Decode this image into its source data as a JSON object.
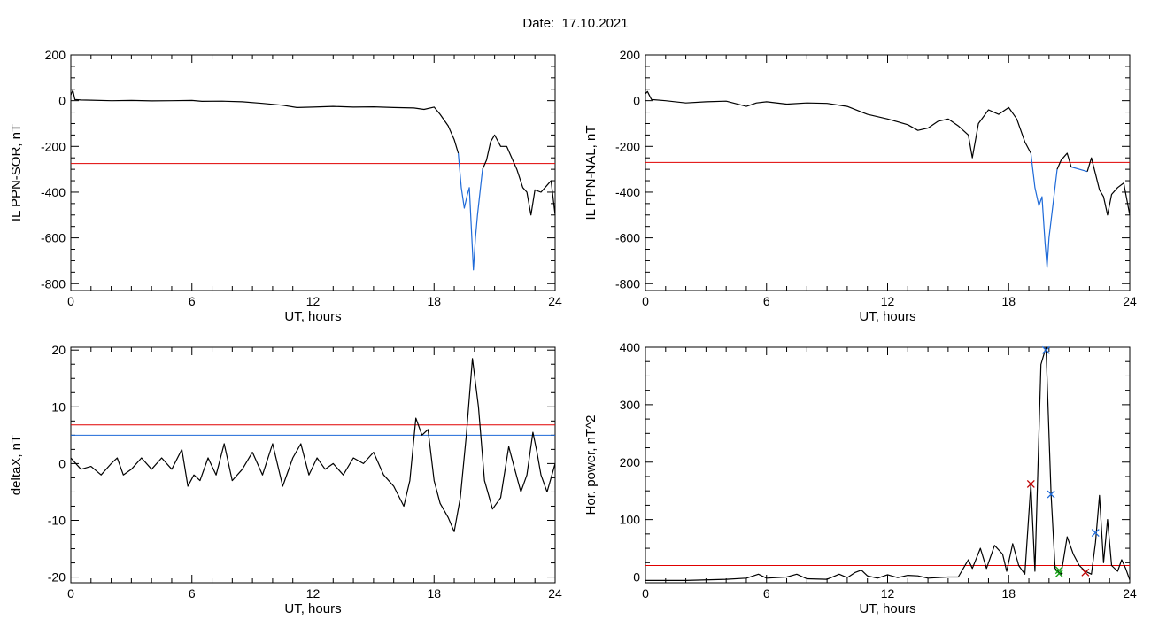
{
  "page": {
    "date_label": "Date:  17.10.2021"
  },
  "chart_data": [
    {
      "type": "line",
      "xlabel": "UT, hours",
      "ylabel": "IL PPN-SOR, nT",
      "xlim": [
        0,
        24
      ],
      "ylim": [
        -830,
        200
      ],
      "xticks": [
        0,
        6,
        12,
        18,
        24
      ],
      "yticks": [
        200,
        0,
        -200,
        -400,
        -600,
        -800
      ],
      "threshold_lines": [
        {
          "y": -275,
          "color": "#e00000"
        }
      ],
      "series": [
        {
          "color": "#000000",
          "points": [
            [
              0,
              25
            ],
            [
              0.1,
              45
            ],
            [
              0.2,
              5
            ],
            [
              0.5,
              3
            ],
            [
              1,
              2
            ],
            [
              2,
              0
            ],
            [
              3,
              1
            ],
            [
              4,
              -1
            ],
            [
              5,
              0
            ],
            [
              6,
              1
            ],
            [
              6.5,
              -3
            ],
            [
              7.5,
              -2
            ],
            [
              8.5,
              -5
            ],
            [
              9.5,
              -12
            ],
            [
              10.5,
              -20
            ],
            [
              11.2,
              -30
            ],
            [
              12,
              -28
            ],
            [
              13,
              -25
            ],
            [
              14,
              -28
            ],
            [
              15,
              -27
            ],
            [
              16,
              -30
            ],
            [
              17,
              -32
            ],
            [
              17.5,
              -38
            ],
            [
              18,
              -28
            ],
            [
              18.3,
              -60
            ],
            [
              18.7,
              -110
            ],
            [
              19.0,
              -170
            ],
            [
              19.2,
              -230
            ]
          ]
        },
        {
          "color": "#1e6ad8",
          "points": [
            [
              19.2,
              -230
            ],
            [
              19.35,
              -380
            ],
            [
              19.5,
              -470
            ],
            [
              19.65,
              -410
            ],
            [
              19.75,
              -380
            ],
            [
              19.85,
              -560
            ],
            [
              19.95,
              -740
            ],
            [
              20.05,
              -600
            ],
            [
              20.15,
              -500
            ],
            [
              20.3,
              -380
            ],
            [
              20.4,
              -300
            ]
          ]
        },
        {
          "color": "#000000",
          "points": [
            [
              20.4,
              -300
            ],
            [
              20.6,
              -260
            ],
            [
              20.8,
              -180
            ],
            [
              21.0,
              -150
            ],
            [
              21.3,
              -200
            ],
            [
              21.6,
              -200
            ],
            [
              21.9,
              -260
            ],
            [
              22.1,
              -300
            ],
            [
              22.4,
              -380
            ],
            [
              22.6,
              -400
            ],
            [
              22.8,
              -500
            ],
            [
              23.0,
              -390
            ],
            [
              23.3,
              -400
            ],
            [
              23.6,
              -370
            ],
            [
              23.8,
              -350
            ],
            [
              24,
              -500
            ]
          ]
        }
      ]
    },
    {
      "type": "line",
      "xlabel": "UT, hours",
      "ylabel": "IL PPN-NAL, nT",
      "xlim": [
        0,
        24
      ],
      "ylim": [
        -830,
        200
      ],
      "xticks": [
        0,
        6,
        12,
        18,
        24
      ],
      "yticks": [
        200,
        0,
        -200,
        -400,
        -600,
        -800
      ],
      "threshold_lines": [
        {
          "y": -270,
          "color": "#e00000"
        }
      ],
      "series": [
        {
          "color": "#000000",
          "points": [
            [
              0,
              30
            ],
            [
              0.1,
              40
            ],
            [
              0.3,
              5
            ],
            [
              1,
              0
            ],
            [
              2,
              -10
            ],
            [
              3,
              -5
            ],
            [
              4,
              -2
            ],
            [
              5,
              -25
            ],
            [
              5.5,
              -10
            ],
            [
              6,
              -5
            ],
            [
              7,
              -15
            ],
            [
              8,
              -10
            ],
            [
              9,
              -12
            ],
            [
              10,
              -25
            ],
            [
              11,
              -60
            ],
            [
              12,
              -80
            ],
            [
              13,
              -105
            ],
            [
              13.5,
              -130
            ],
            [
              14,
              -120
            ],
            [
              14.5,
              -90
            ],
            [
              15,
              -80
            ],
            [
              15.5,
              -110
            ],
            [
              16,
              -150
            ],
            [
              16.2,
              -250
            ],
            [
              16.5,
              -100
            ],
            [
              17,
              -40
            ],
            [
              17.5,
              -60
            ],
            [
              18,
              -30
            ],
            [
              18.4,
              -80
            ],
            [
              18.8,
              -180
            ],
            [
              19.1,
              -230
            ]
          ]
        },
        {
          "color": "#1e6ad8",
          "points": [
            [
              19.1,
              -230
            ],
            [
              19.3,
              -380
            ],
            [
              19.5,
              -460
            ],
            [
              19.65,
              -420
            ],
            [
              19.8,
              -620
            ],
            [
              19.9,
              -730
            ],
            [
              20.0,
              -600
            ],
            [
              20.2,
              -450
            ],
            [
              20.4,
              -300
            ]
          ]
        },
        {
          "color": "#000000",
          "points": [
            [
              20.4,
              -300
            ],
            [
              20.6,
              -260
            ],
            [
              20.9,
              -230
            ],
            [
              21.1,
              -290
            ]
          ]
        },
        {
          "color": "#1e6ad8",
          "points": [
            [
              21.1,
              -290
            ],
            [
              21.5,
              -300
            ],
            [
              21.9,
              -310
            ]
          ]
        },
        {
          "color": "#000000",
          "points": [
            [
              21.9,
              -310
            ],
            [
              22.1,
              -250
            ],
            [
              22.3,
              -320
            ],
            [
              22.5,
              -390
            ],
            [
              22.7,
              -420
            ],
            [
              22.9,
              -500
            ],
            [
              23.1,
              -410
            ],
            [
              23.4,
              -380
            ],
            [
              23.7,
              -360
            ],
            [
              24,
              -500
            ]
          ]
        }
      ]
    },
    {
      "type": "line",
      "xlabel": "UT, hours",
      "ylabel": "deltaX, nT",
      "xlim": [
        0,
        24
      ],
      "ylim": [
        -21,
        20.5
      ],
      "xticks": [
        0,
        6,
        12,
        18,
        24
      ],
      "yticks": [
        20,
        10,
        0,
        -10,
        -20
      ],
      "threshold_lines": [
        {
          "y": 6.8,
          "color": "#e00000"
        },
        {
          "y": 5,
          "color": "#1e6ad8"
        }
      ],
      "series": [
        {
          "color": "#000000",
          "points": [
            [
              0,
              1
            ],
            [
              0.5,
              -1
            ],
            [
              1,
              -0.5
            ],
            [
              1.5,
              -2
            ],
            [
              2,
              0
            ],
            [
              2.3,
              1
            ],
            [
              2.6,
              -2
            ],
            [
              3,
              -1
            ],
            [
              3.5,
              1
            ],
            [
              4,
              -1
            ],
            [
              4.5,
              1
            ],
            [
              5,
              -1
            ],
            [
              5.5,
              2.5
            ],
            [
              5.8,
              -4
            ],
            [
              6.1,
              -2
            ],
            [
              6.4,
              -3
            ],
            [
              6.8,
              1
            ],
            [
              7.2,
              -2
            ],
            [
              7.6,
              3.5
            ],
            [
              8,
              -3
            ],
            [
              8.5,
              -1
            ],
            [
              9,
              2
            ],
            [
              9.5,
              -2
            ],
            [
              10,
              3.5
            ],
            [
              10.5,
              -4
            ],
            [
              11,
              1
            ],
            [
              11.4,
              3.5
            ],
            [
              11.8,
              -2
            ],
            [
              12.2,
              1
            ],
            [
              12.6,
              -1
            ],
            [
              13,
              0
            ],
            [
              13.5,
              -2
            ],
            [
              14,
              1
            ],
            [
              14.5,
              0
            ],
            [
              15,
              2
            ],
            [
              15.5,
              -2
            ],
            [
              16,
              -4
            ],
            [
              16.5,
              -7.5
            ],
            [
              16.8,
              -3
            ],
            [
              17.1,
              8
            ],
            [
              17.4,
              5
            ],
            [
              17.7,
              6
            ],
            [
              18.0,
              -3
            ],
            [
              18.3,
              -7
            ],
            [
              18.7,
              -9.5
            ],
            [
              19.0,
              -12
            ],
            [
              19.3,
              -6
            ],
            [
              19.6,
              5
            ],
            [
              19.9,
              18.5
            ],
            [
              20.2,
              10
            ],
            [
              20.5,
              -3
            ],
            [
              20.9,
              -8
            ],
            [
              21.3,
              -6
            ],
            [
              21.7,
              3
            ],
            [
              22.0,
              -1
            ],
            [
              22.3,
              -5
            ],
            [
              22.6,
              -2
            ],
            [
              22.9,
              5.5
            ],
            [
              23.1,
              2
            ],
            [
              23.3,
              -2
            ],
            [
              23.6,
              -5
            ],
            [
              24,
              0
            ]
          ]
        }
      ]
    },
    {
      "type": "line",
      "xlabel": "UT, hours",
      "ylabel": "Hor. power, nT^2",
      "xlim": [
        0,
        24
      ],
      "ylim": [
        -10,
        400
      ],
      "xticks": [
        0,
        6,
        12,
        18,
        24
      ],
      "yticks": [
        400,
        300,
        200,
        100,
        0
      ],
      "threshold_lines": [
        {
          "y": 20,
          "color": "#e00000"
        }
      ],
      "series": [
        {
          "color": "#000000",
          "points": [
            [
              0,
              -6
            ],
            [
              2,
              -6
            ],
            [
              4,
              -4
            ],
            [
              5,
              -2
            ],
            [
              5.6,
              5
            ],
            [
              6,
              -2
            ],
            [
              7,
              0
            ],
            [
              7.5,
              5
            ],
            [
              8,
              -3
            ],
            [
              9,
              -4
            ],
            [
              9.6,
              5
            ],
            [
              10,
              -1
            ],
            [
              10.4,
              8
            ],
            [
              10.7,
              12
            ],
            [
              11,
              2
            ],
            [
              11.5,
              -2
            ],
            [
              12,
              4
            ],
            [
              12.5,
              -1
            ],
            [
              13,
              3
            ],
            [
              13.5,
              2
            ],
            [
              14,
              -2
            ],
            [
              15,
              0
            ],
            [
              15.5,
              0
            ],
            [
              16,
              30
            ],
            [
              16.2,
              15
            ],
            [
              16.6,
              50
            ],
            [
              16.9,
              15
            ],
            [
              17.3,
              55
            ],
            [
              17.7,
              40
            ],
            [
              17.9,
              10
            ],
            [
              18.2,
              58
            ],
            [
              18.5,
              20
            ],
            [
              18.8,
              5
            ],
            [
              19.1,
              162
            ],
            [
              19.3,
              10
            ],
            [
              19.6,
              370
            ],
            [
              19.85,
              400
            ],
            [
              20.1,
              145
            ],
            [
              20.3,
              15
            ],
            [
              20.6,
              5
            ],
            [
              20.9,
              70
            ],
            [
              21.2,
              40
            ],
            [
              21.5,
              20
            ],
            [
              21.8,
              10
            ],
            [
              22.1,
              5
            ],
            [
              22.3,
              60
            ],
            [
              22.5,
              142
            ],
            [
              22.7,
              25
            ],
            [
              22.9,
              100
            ],
            [
              23.1,
              20
            ],
            [
              23.4,
              10
            ],
            [
              23.6,
              30
            ],
            [
              23.8,
              15
            ],
            [
              24,
              -5
            ]
          ]
        }
      ],
      "markers": [
        {
          "x": 19.1,
          "y": 162,
          "color": "#c00000"
        },
        {
          "x": 19.85,
          "y": 395,
          "color": "#1e6ad8"
        },
        {
          "x": 20.1,
          "y": 144,
          "color": "#1e6ad8"
        },
        {
          "x": 20.5,
          "y": 12,
          "color": "#14a014"
        },
        {
          "x": 20.5,
          "y": 6,
          "color": "#14a014"
        },
        {
          "x": 21.8,
          "y": 8,
          "color": "#c00000"
        },
        {
          "x": 22.3,
          "y": 77,
          "color": "#1e6ad8"
        }
      ]
    }
  ]
}
